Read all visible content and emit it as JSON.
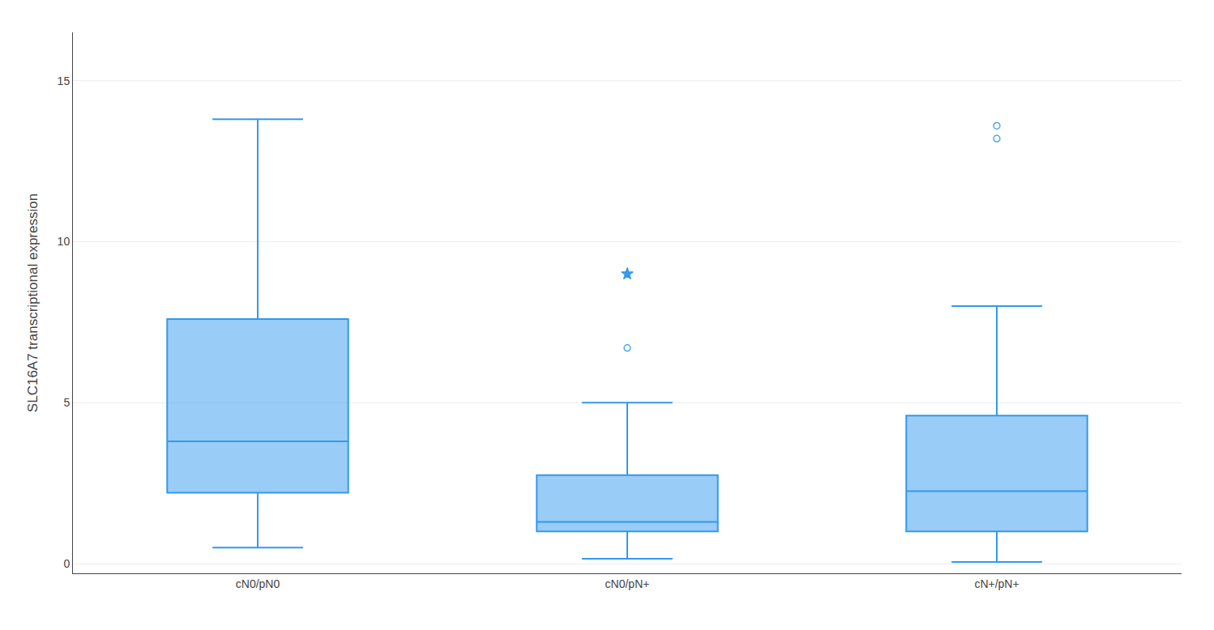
{
  "chart_data": {
    "type": "box",
    "categories": [
      "cN0/pN0",
      "cN0/pN+",
      "cN+/pN+"
    ],
    "whisker_low": [
      0.5,
      0.15,
      0.05
    ],
    "q1": [
      2.2,
      1.0,
      1.0
    ],
    "median": [
      3.8,
      1.3,
      2.25
    ],
    "q3": [
      7.6,
      2.75,
      4.6
    ],
    "whisker_high": [
      13.8,
      5.0,
      8.0
    ],
    "fliers_circle": [
      [],
      [
        6.7
      ],
      [
        13.2,
        13.6
      ]
    ],
    "fliers_star": [
      [],
      [
        9.0
      ],
      []
    ],
    "ylabel": "SLC16A7 transcriptional expression",
    "ylim": [
      -0.3,
      16.5
    ],
    "yticks": [
      0,
      5,
      10,
      15
    ],
    "grid": true,
    "color": "#3399EE"
  }
}
